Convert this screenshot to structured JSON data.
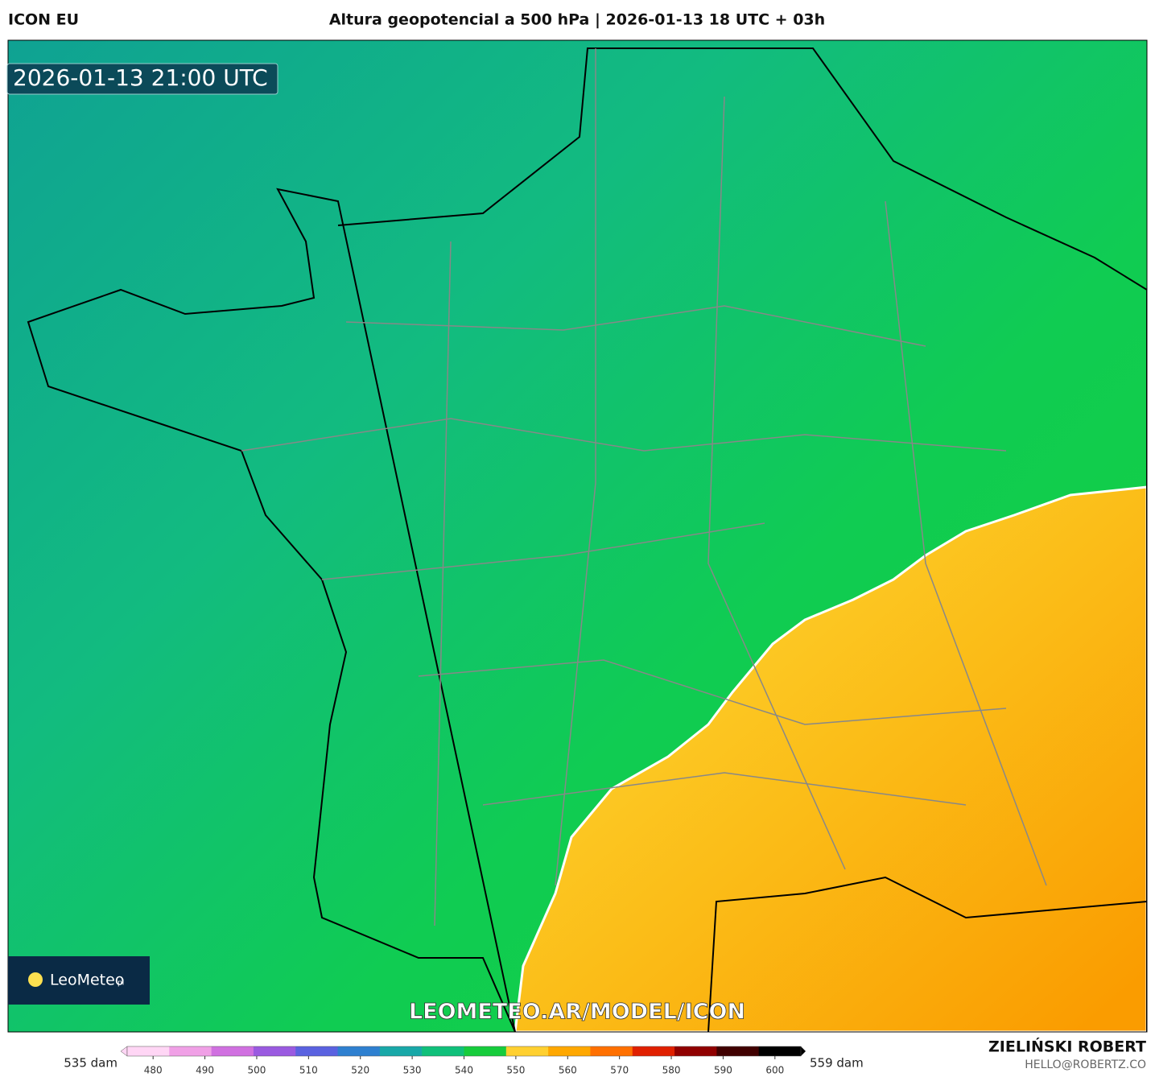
{
  "header": {
    "model": "ICON EU",
    "title": "Altura geopotencial a 500 hPa | 2026-01-13 18 UTC + 03h"
  },
  "map": {
    "valid_time": "2026-01-13 21:00 UTC",
    "logo": "LeoMeteo",
    "logo_suffix": "pl",
    "watermark": "LEOMETEO.AR/MODEL/ICON"
  },
  "colorbar": {
    "min_label": "535 dam",
    "max_label": "559 dam",
    "lim": [
      475,
      605
    ],
    "ticks": [
      480,
      490,
      500,
      510,
      520,
      530,
      540,
      550,
      560,
      570,
      580,
      590,
      600
    ],
    "colors": [
      "#ffd6f5",
      "#f0a0e6",
      "#d070e0",
      "#9a5ae0",
      "#5a62e0",
      "#2e80d0",
      "#18a8a8",
      "#10c07a",
      "#16cc3c",
      "#ffd030",
      "#ffa800",
      "#ff7000",
      "#e02000",
      "#900000",
      "#400000",
      "#000000"
    ]
  },
  "credits": {
    "author": "ZIELIŃSKI ROBERT",
    "email": "HELLO@ROBERTZ.CO"
  }
}
